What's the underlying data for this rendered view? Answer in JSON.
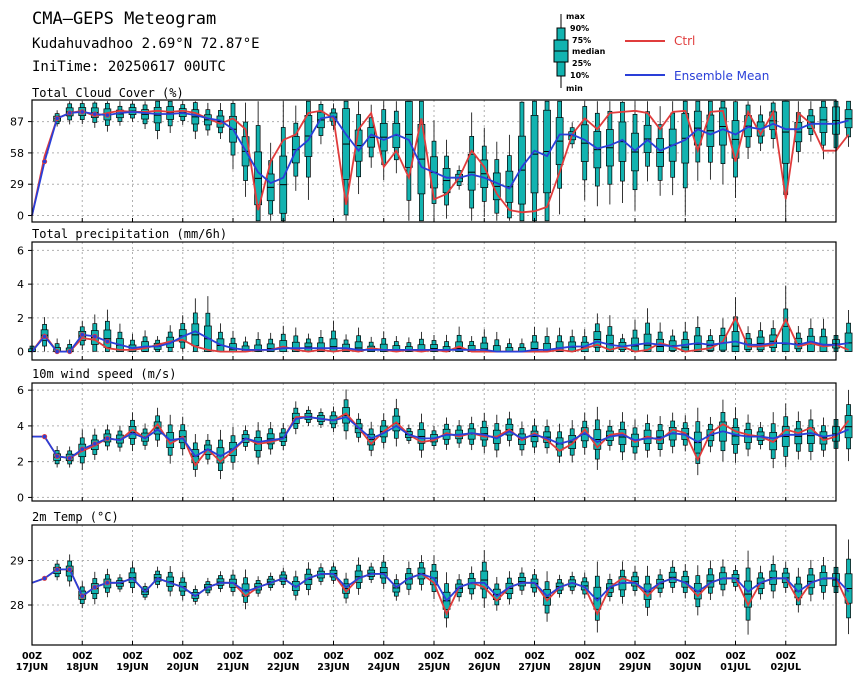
{
  "header": {
    "title": "CMA–GEPS Meteogram",
    "location": "Kudahuvadhoo 2.69°N 72.87°E",
    "init_time": "IniTime: 20250617 00UTC"
  },
  "legend": {
    "box_labels": [
      "max",
      "90%",
      "75%",
      "median",
      "25%",
      "10%",
      "min"
    ],
    "ctrl_label": "Ctrl",
    "mean_label": "Ensemble Mean",
    "ctrl_color": "#e03c3c",
    "mean_color": "#2a3fd8",
    "box_color": "#12b3b0"
  },
  "x_axis": {
    "labels": [
      [
        "00Z",
        "17JUN"
      ],
      [
        "00Z",
        "18JUN"
      ],
      [
        "00Z",
        "19JUN"
      ],
      [
        "00Z",
        "20JUN"
      ],
      [
        "00Z",
        "21JUN"
      ],
      [
        "00Z",
        "22JUN"
      ],
      [
        "00Z",
        "23JUN"
      ],
      [
        "00Z",
        "24JUN"
      ],
      [
        "00Z",
        "25JUN"
      ],
      [
        "00Z",
        "26JUN"
      ],
      [
        "00Z",
        "27JUN"
      ],
      [
        "00Z",
        "28JUN"
      ],
      [
        "00Z",
        "29JUN"
      ],
      [
        "00Z",
        "30JUN"
      ],
      [
        "00Z",
        "01JUL"
      ],
      [
        "00Z",
        "02JUL"
      ]
    ]
  },
  "chart_data": [
    {
      "type": "boxplot",
      "title": "Total Cloud Cover (%)",
      "x_unit": "forecast hours since 2025-06-17 00Z (6-hourly)",
      "yticks": [
        0,
        29,
        58,
        87
      ],
      "ylim": [
        -6,
        107
      ],
      "grid": true,
      "ctrl": [
        0,
        55,
        90,
        95,
        97,
        92,
        95,
        97,
        96,
        96,
        97,
        96,
        97,
        95,
        90,
        85,
        90,
        80,
        5,
        50,
        70,
        75,
        95,
        97,
        90,
        10,
        80,
        95,
        45,
        60,
        35,
        90,
        15,
        20,
        35,
        60,
        45,
        20,
        5,
        3,
        4,
        8,
        40,
        75,
        90,
        80,
        95,
        96,
        97,
        95,
        80,
        96,
        97,
        60,
        96,
        97,
        50,
        96,
        75,
        96,
        15,
        95,
        85,
        60,
        60,
        75
      ],
      "mean": [
        0,
        50,
        90,
        95,
        96,
        94,
        93,
        95,
        96,
        95,
        94,
        94,
        95,
        93,
        90,
        88,
        80,
        60,
        40,
        30,
        35,
        60,
        70,
        90,
        92,
        75,
        60,
        75,
        70,
        75,
        70,
        45,
        40,
        35,
        35,
        38,
        35,
        30,
        25,
        45,
        60,
        55,
        75,
        75,
        70,
        62,
        65,
        70,
        60,
        70,
        60,
        65,
        70,
        80,
        75,
        80,
        75,
        82,
        80,
        85,
        80,
        80,
        85,
        85,
        85,
        88
      ]
    },
    {
      "type": "boxplot",
      "title": "Total precipitation (mm/6h)",
      "x_unit": "forecast hours since 2025-06-17 00Z (6-hourly)",
      "yticks": [
        0,
        2,
        4,
        6
      ],
      "ylim": [
        -0.5,
        6.5
      ],
      "grid": true,
      "ctrl": [
        0,
        1,
        0,
        0,
        0.8,
        0.7,
        0.2,
        0.1,
        0.1,
        0.2,
        0.4,
        0.6,
        0.7,
        0.3,
        0.1,
        0,
        0,
        0,
        0.1,
        0.1,
        0.3,
        0.1,
        0,
        0.1,
        0,
        0.1,
        0,
        0.2,
        0.1,
        0,
        0.1,
        0,
        0.1,
        0,
        0.3,
        0,
        0,
        0,
        0,
        0,
        0,
        0,
        0.1,
        0,
        0.2,
        0.4,
        0.1,
        0.3,
        0,
        0.1,
        0.5,
        0.3,
        0,
        0.1,
        0.2,
        0.6,
        2,
        0.3,
        0.3,
        0.4,
        1.9,
        0.3,
        0.5,
        0.3,
        0.4,
        0.1
      ],
      "mean": [
        0,
        0.9,
        0,
        0,
        1,
        0.9,
        0.6,
        0.4,
        0.2,
        0.3,
        0.3,
        0.5,
        0.9,
        1.2,
        0.8,
        0.4,
        0.2,
        0.1,
        0.1,
        0.1,
        0.2,
        0.2,
        0.2,
        0.2,
        0.2,
        0.2,
        0.1,
        0.1,
        0.1,
        0.1,
        0.1,
        0.1,
        0.1,
        0.1,
        0.1,
        0.1,
        0.1,
        0,
        0,
        0,
        0.1,
        0.1,
        0.2,
        0.3,
        0.3,
        0.6,
        0.4,
        0.3,
        0.4,
        0.5,
        0.4,
        0.3,
        0.4,
        0.5,
        0.4,
        0.5,
        0.6,
        0.4,
        0.4,
        0.5,
        0.5,
        0.4,
        0.6,
        0.4,
        0.4,
        0.5
      ]
    },
    {
      "type": "boxplot",
      "title": "10m wind speed (m/s)",
      "x_unit": "forecast hours since 2025-06-17 00Z (6-hourly)",
      "yticks": [
        0,
        2,
        4,
        6
      ],
      "ylim": [
        -0.2,
        6.4
      ],
      "grid": true,
      "ctrl": [
        3.4,
        3.4,
        2.3,
        2.2,
        2.6,
        2.9,
        3.3,
        3.2,
        3.8,
        3.3,
        4.1,
        3.0,
        3.4,
        1.8,
        2.7,
        2.0,
        2.6,
        3.3,
        3.0,
        3.1,
        3.3,
        4.5,
        4.5,
        4.4,
        4.3,
        4.7,
        3.9,
        3.0,
        3.7,
        4.2,
        3.5,
        3.1,
        3.2,
        3.6,
        3.4,
        3.6,
        3.4,
        3.4,
        3.8,
        3.2,
        3.6,
        3.2,
        2.6,
        3.0,
        3.8,
        2.8,
        3.5,
        3.6,
        3.1,
        3.4,
        3.2,
        3.8,
        3.6,
        2.1,
        3.6,
        4.1,
        3.7,
        3.5,
        3.4,
        3.1,
        3.8,
        3.6,
        3.9,
        3.2,
        3.4,
        4.3
      ],
      "mean": [
        3.4,
        3.4,
        2.3,
        2.2,
        2.7,
        3.0,
        3.3,
        3.2,
        3.6,
        3.3,
        3.8,
        3.2,
        3.3,
        2.3,
        2.7,
        2.3,
        2.7,
        3.3,
        3.1,
        3.2,
        3.3,
        4.4,
        4.5,
        4.4,
        4.3,
        4.5,
        3.9,
        3.3,
        3.6,
        4.0,
        3.5,
        3.3,
        3.3,
        3.5,
        3.5,
        3.6,
        3.5,
        3.3,
        3.7,
        3.3,
        3.5,
        3.3,
        3.0,
        3.2,
        3.6,
        3.1,
        3.4,
        3.5,
        3.2,
        3.3,
        3.3,
        3.6,
        3.5,
        3.1,
        3.5,
        3.7,
        3.5,
        3.4,
        3.4,
        3.3,
        3.5,
        3.5,
        3.6,
        3.4,
        3.5,
        3.8
      ]
    },
    {
      "type": "boxplot",
      "title": "2m Temp (°C)",
      "x_unit": "forecast hours since 2025-06-17 00Z (6-hourly)",
      "yticks": [
        28,
        29
      ],
      "ylim": [
        27.1,
        29.8
      ],
      "grid": true,
      "ctrl": [
        28.5,
        28.6,
        28.8,
        28.8,
        28.2,
        28.4,
        28.5,
        28.5,
        28.6,
        28.3,
        28.6,
        28.5,
        28.4,
        28.2,
        28.4,
        28.5,
        28.5,
        28.2,
        28.4,
        28.5,
        28.6,
        28.4,
        28.6,
        28.7,
        28.7,
        28.3,
        28.6,
        28.7,
        28.7,
        28.4,
        28.6,
        28.7,
        28.5,
        27.8,
        28.4,
        28.5,
        28.4,
        28.1,
        28.4,
        28.5,
        28.5,
        28.1,
        28.4,
        28.5,
        28.4,
        27.8,
        28.4,
        28.6,
        28.5,
        28.2,
        28.5,
        28.6,
        28.5,
        28.2,
        28.5,
        28.6,
        28.6,
        28.0,
        28.5,
        28.6,
        28.6,
        28.1,
        28.5,
        28.6,
        28.6,
        28.0
      ],
      "mean": [
        28.5,
        28.6,
        28.8,
        28.8,
        28.2,
        28.4,
        28.5,
        28.5,
        28.6,
        28.3,
        28.6,
        28.5,
        28.4,
        28.2,
        28.4,
        28.5,
        28.5,
        28.3,
        28.4,
        28.5,
        28.6,
        28.4,
        28.6,
        28.7,
        28.7,
        28.4,
        28.6,
        28.7,
        28.7,
        28.4,
        28.6,
        28.7,
        28.6,
        28.1,
        28.4,
        28.5,
        28.5,
        28.2,
        28.4,
        28.5,
        28.5,
        28.2,
        28.4,
        28.5,
        28.4,
        28.1,
        28.4,
        28.5,
        28.5,
        28.3,
        28.5,
        28.6,
        28.5,
        28.3,
        28.5,
        28.6,
        28.6,
        28.3,
        28.5,
        28.6,
        28.6,
        28.3,
        28.5,
        28.6,
        28.6,
        28.3
      ]
    }
  ]
}
